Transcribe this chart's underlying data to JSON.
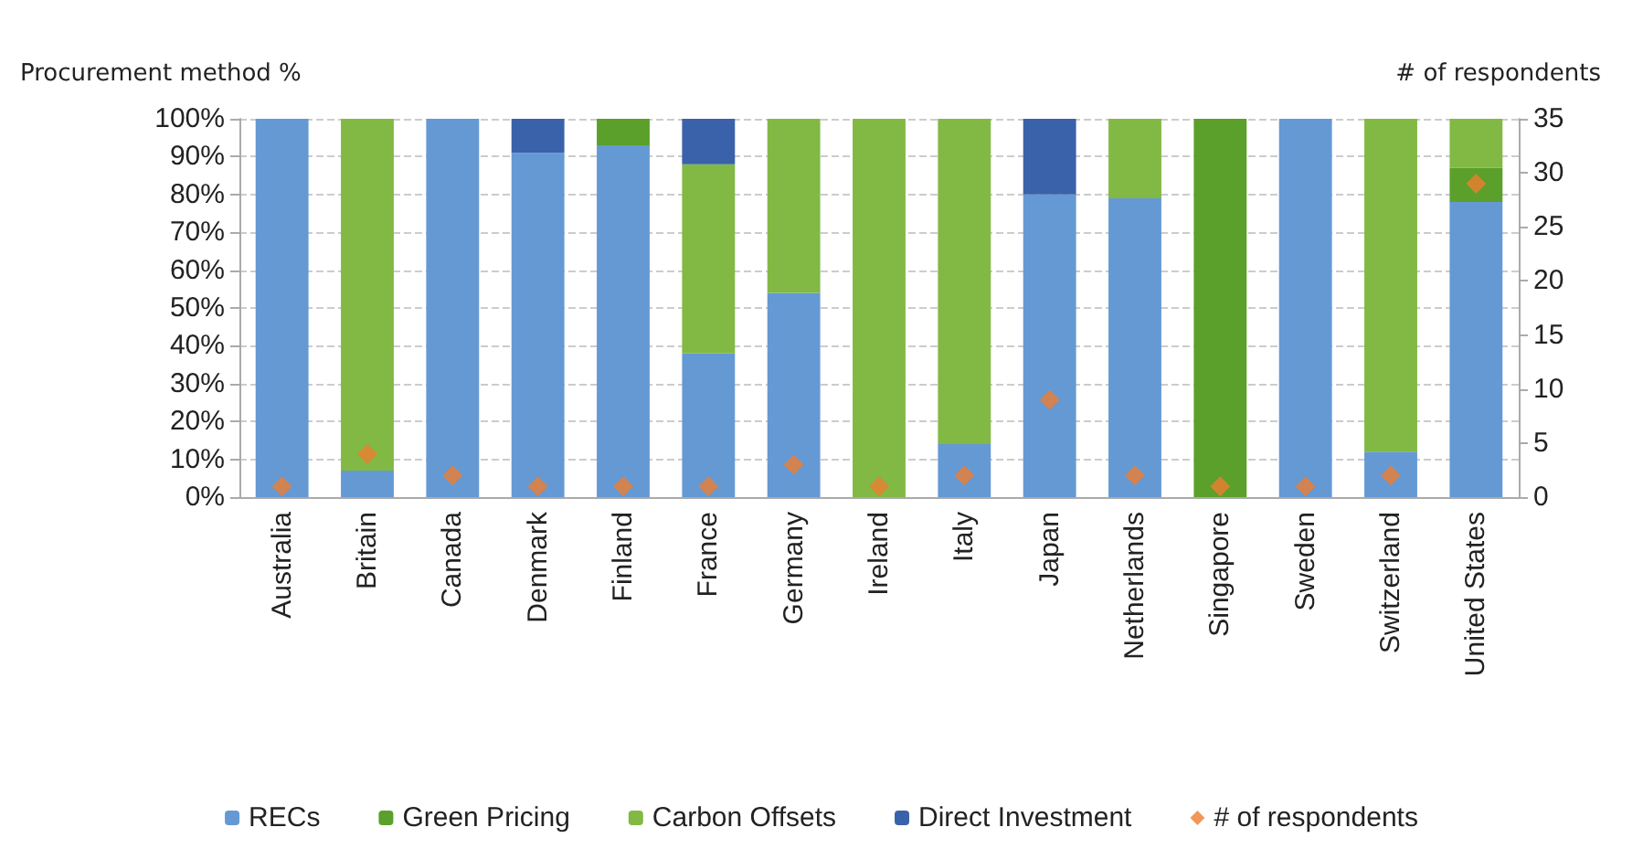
{
  "chart_data": {
    "type": "bar",
    "stacked": true,
    "ylabel": "Procurement method %",
    "y2label": "# of respondents",
    "categories": [
      "Australia",
      "Britain",
      "Canada",
      "Denmark",
      "Finland",
      "France",
      "Germany",
      "Ireland",
      "Italy",
      "Japan",
      "Netherlands",
      "Singapore",
      "Sweden",
      "Switzerland",
      "United States"
    ],
    "series": [
      {
        "name": "RECs",
        "color": "#6499d4",
        "values": [
          100,
          7,
          100,
          91,
          93,
          38,
          54,
          0,
          14,
          80,
          79,
          0,
          100,
          12,
          78
        ]
      },
      {
        "name": "Green Pricing",
        "color": "#5aa02a",
        "values": [
          0,
          0,
          0,
          0,
          7,
          0,
          0,
          0,
          0,
          0,
          0,
          100,
          0,
          0,
          9
        ]
      },
      {
        "name": "Carbon Offsets",
        "color": "#81b944",
        "values": [
          0,
          93,
          0,
          0,
          0,
          50,
          46,
          100,
          86,
          0,
          21,
          0,
          0,
          88,
          13
        ]
      },
      {
        "name": "Direct Investment",
        "color": "#3a62aa",
        "values": [
          0,
          0,
          0,
          9,
          0,
          12,
          0,
          0,
          0,
          20,
          0,
          0,
          0,
          0,
          0
        ]
      },
      {
        "name": "# of respondents",
        "type": "scatter",
        "axis": "y2",
        "marker": "diamond",
        "color": "#ed7d31",
        "values": [
          1,
          4,
          2,
          1,
          1,
          1,
          3,
          1,
          2,
          9,
          2,
          1,
          1,
          2,
          29
        ]
      }
    ],
    "ylim": [
      0,
      100
    ],
    "yticks": [
      {
        "value": 0,
        "label": "0%"
      },
      {
        "value": 10,
        "label": "10%"
      },
      {
        "value": 20,
        "label": "20%"
      },
      {
        "value": 30,
        "label": "30%"
      },
      {
        "value": 40,
        "label": "40%"
      },
      {
        "value": 50,
        "label": "50%"
      },
      {
        "value": 60,
        "label": "60%"
      },
      {
        "value": 70,
        "label": "70%"
      },
      {
        "value": 80,
        "label": "80%"
      },
      {
        "value": 90,
        "label": "90%"
      },
      {
        "value": 100,
        "label": "100%"
      }
    ],
    "y2lim": [
      0,
      35
    ],
    "y2ticks": [
      0,
      5,
      10,
      15,
      20,
      25,
      30,
      35
    ],
    "grid": "y",
    "legend": "bottom"
  }
}
